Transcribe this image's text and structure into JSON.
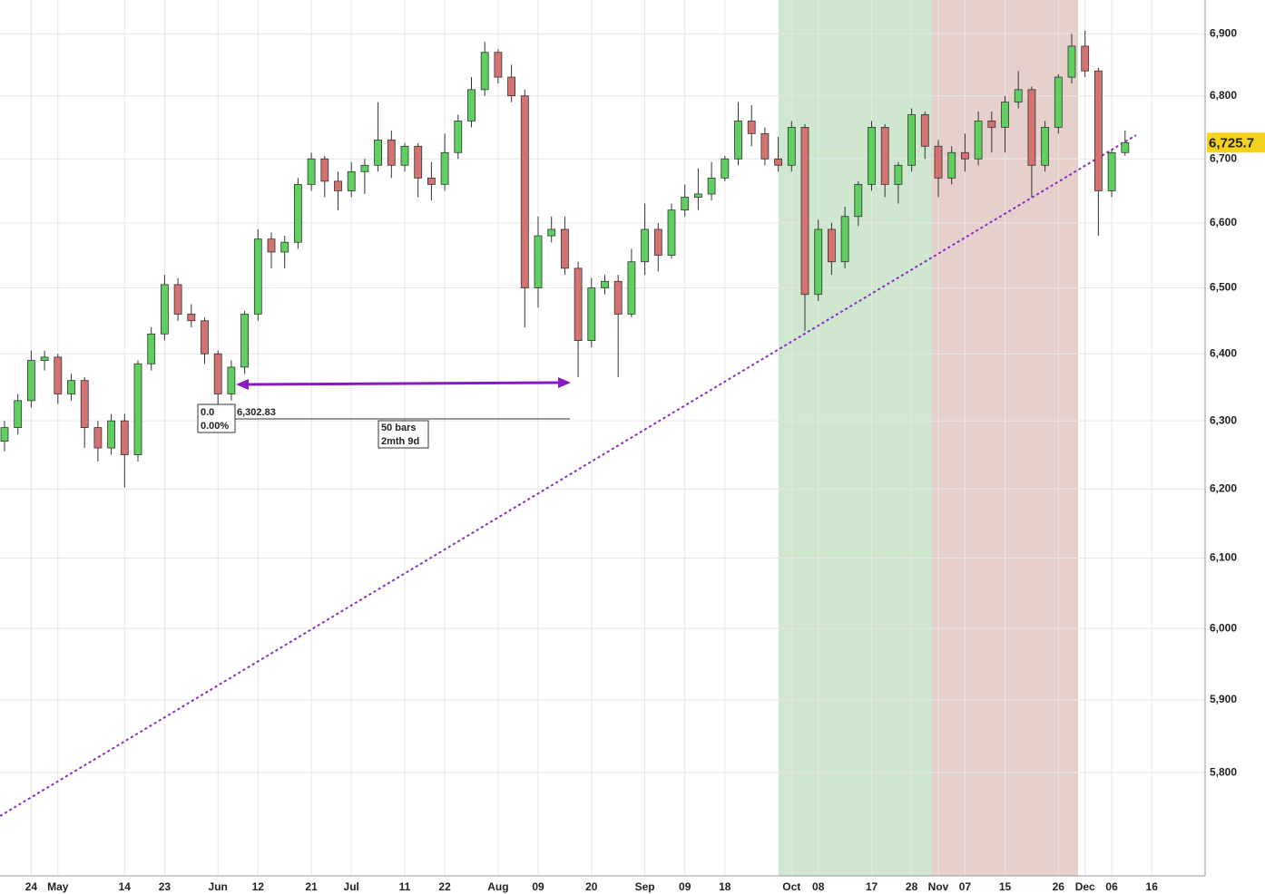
{
  "chart_data": {
    "type": "candlestick",
    "log_scale": true,
    "grid": true,
    "up_color": "#5fcf5f",
    "down_color": "#d47272",
    "ylim": [
      5661,
      6955
    ],
    "yticks": [
      {
        "value": 5800,
        "label": "5,800"
      },
      {
        "value": 5900,
        "label": "5,900"
      },
      {
        "value": 6000,
        "label": "6,000"
      },
      {
        "value": 6100,
        "label": "6,100"
      },
      {
        "value": 6200,
        "label": "6,200"
      },
      {
        "value": 6300,
        "label": "6,300"
      },
      {
        "value": 6400,
        "label": "6,400"
      },
      {
        "value": 6500,
        "label": "6,500"
      },
      {
        "value": 6600,
        "label": "6,600"
      },
      {
        "value": 6700,
        "label": "6,700"
      },
      {
        "value": 6800,
        "label": "6,800"
      },
      {
        "value": 6900,
        "label": "6,900"
      }
    ],
    "categories": [
      null,
      null,
      "24",
      null,
      "May",
      null,
      null,
      null,
      null,
      "14",
      null,
      null,
      "23",
      null,
      null,
      null,
      "Jun",
      null,
      null,
      "12",
      null,
      null,
      null,
      "21",
      null,
      null,
      "Jul",
      null,
      null,
      null,
      "11",
      null,
      null,
      "22",
      null,
      null,
      null,
      "Aug",
      null,
      null,
      "09",
      null,
      null,
      null,
      "20",
      null,
      null,
      null,
      "Sep",
      null,
      null,
      "09",
      null,
      null,
      "18",
      null,
      null,
      null,
      null,
      "Oct",
      null,
      "08",
      null,
      null,
      null,
      "17",
      null,
      null,
      "28",
      null,
      "Nov",
      null,
      "07",
      null,
      null,
      "15",
      null,
      null,
      null,
      "26",
      null,
      "Dec",
      null,
      "06",
      null,
      null,
      "16",
      null
    ],
    "open": [
      6270,
      6290,
      6330,
      6390,
      6395,
      6340,
      6360,
      6290,
      6260,
      6300,
      6250,
      6385,
      6430,
      6505,
      6460,
      6450,
      6400,
      6340,
      6380,
      6460,
      6575,
      6555,
      6570,
      6660,
      6700,
      6665,
      6650,
      6680,
      6690,
      6730,
      6690,
      6720,
      6670,
      6660,
      6710,
      6760,
      6810,
      6870,
      6830,
      6800,
      6500,
      6580,
      6590,
      6530,
      6420,
      6500,
      6510,
      6460,
      6540,
      6590,
      6550,
      6620,
      6640,
      6645,
      6670,
      6700,
      6760,
      6740,
      6700,
      6690,
      6750,
      6490,
      6590,
      6540,
      6610,
      6660,
      6750,
      6660,
      6690,
      6770,
      6720,
      6670,
      6710,
      6700,
      6760,
      6750,
      6790,
      6810,
      6690,
      6750,
      6830,
      6880,
      6840,
      6650,
      6710,
      null,
      null,
      null
    ],
    "high": [
      6300,
      6340,
      6405,
      6405,
      6400,
      6370,
      6365,
      6300,
      6310,
      6310,
      6390,
      6440,
      6520,
      6515,
      6475,
      6455,
      6405,
      6390,
      6465,
      6590,
      6585,
      6580,
      6670,
      6710,
      6705,
      6680,
      6695,
      6700,
      6790,
      6745,
      6725,
      6725,
      6695,
      6740,
      6770,
      6830,
      6887,
      6875,
      6850,
      6810,
      6610,
      6610,
      6610,
      6540,
      6515,
      6520,
      6520,
      6560,
      6630,
      6600,
      6630,
      6660,
      6685,
      6695,
      6705,
      6790,
      6785,
      6750,
      6735,
      6760,
      6755,
      6605,
      6600,
      6625,
      6665,
      6760,
      6755,
      6695,
      6780,
      6775,
      6730,
      6720,
      6740,
      6775,
      6775,
      6800,
      6840,
      6815,
      6760,
      6835,
      6900,
      6905,
      6845,
      6715,
      6745,
      null,
      null,
      null
    ],
    "low": [
      6255,
      6280,
      6320,
      6375,
      6325,
      6330,
      6260,
      6240,
      6250,
      6202,
      6240,
      6375,
      6420,
      6450,
      6440,
      6385,
      6302.83,
      6330,
      6370,
      6450,
      6530,
      6530,
      6560,
      6650,
      6640,
      6620,
      6640,
      6645,
      6680,
      6670,
      6680,
      6640,
      6635,
      6650,
      6700,
      6750,
      6800,
      6820,
      6790,
      6440,
      6470,
      6570,
      6520,
      6365,
      6410,
      6490,
      6365,
      6455,
      6520,
      6525,
      6545,
      6610,
      6620,
      6635,
      6665,
      6690,
      6720,
      6690,
      6680,
      6680,
      6435,
      6480,
      6520,
      6530,
      6595,
      6650,
      6640,
      6630,
      6680,
      6700,
      6640,
      6660,
      6680,
      6690,
      6710,
      6710,
      6780,
      6640,
      6680,
      6740,
      6820,
      6830,
      6580,
      6640,
      6705,
      null,
      null,
      null
    ],
    "close": [
      6290,
      6330,
      6390,
      6395,
      6340,
      6360,
      6290,
      6260,
      6300,
      6250,
      6385,
      6430,
      6505,
      6460,
      6450,
      6400,
      6340,
      6380,
      6460,
      6575,
      6555,
      6570,
      6660,
      6700,
      6665,
      6650,
      6680,
      6690,
      6730,
      6690,
      6720,
      6670,
      6660,
      6710,
      6760,
      6810,
      6870,
      6830,
      6800,
      6500,
      6580,
      6590,
      6530,
      6420,
      6500,
      6510,
      6460,
      6540,
      6590,
      6550,
      6620,
      6640,
      6645,
      6670,
      6700,
      6760,
      6740,
      6700,
      6690,
      6750,
      6490,
      6590,
      6540,
      6610,
      6660,
      6750,
      6660,
      6690,
      6770,
      6720,
      6670,
      6710,
      6700,
      6760,
      6750,
      6790,
      6810,
      6690,
      6750,
      6830,
      6880,
      6840,
      6650,
      6710,
      6725.7,
      null,
      null,
      null
    ],
    "last_price": {
      "value": 6725.7,
      "label": "6,725.7"
    },
    "annotations": {
      "fib_level": "0.0",
      "fib_percent": "0.00%",
      "low_price": "6,302.83",
      "bars": "50 bars",
      "duration": "2mth 9d"
    }
  }
}
